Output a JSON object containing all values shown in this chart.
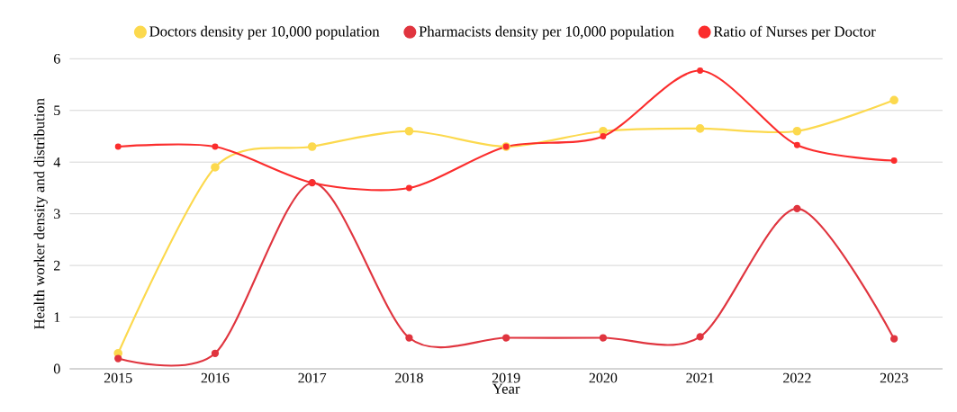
{
  "chart_data": {
    "type": "line",
    "xlabel": "Year",
    "ylabel": "Health worker density and distribution",
    "categories": [
      "2015",
      "2016",
      "2017",
      "2018",
      "2019",
      "2020",
      "2021",
      "2022",
      "2023"
    ],
    "series": [
      {
        "name": "Doctors density per 10,000 population",
        "color": "#fcd94e",
        "values": [
          0.3,
          3.9,
          4.3,
          4.6,
          4.3,
          4.6,
          4.65,
          4.6,
          5.2
        ]
      },
      {
        "name": "Pharmacists density per 10,000 population",
        "color": "#e0353f",
        "values": [
          0.2,
          0.3,
          3.6,
          0.6,
          0.6,
          0.6,
          0.62,
          3.1,
          0.58
        ]
      },
      {
        "name": "Ratio of Nurses per Doctor",
        "color": "#fb2d2d",
        "values": [
          4.3,
          4.3,
          3.6,
          3.5,
          4.3,
          4.5,
          5.77,
          4.33,
          4.03
        ]
      }
    ],
    "ylim": [
      0,
      6
    ],
    "yticks": [
      0,
      1,
      2,
      3,
      4,
      5,
      6
    ],
    "grid": "y",
    "legend": "top",
    "marker": "circle",
    "line_style": "solid"
  }
}
